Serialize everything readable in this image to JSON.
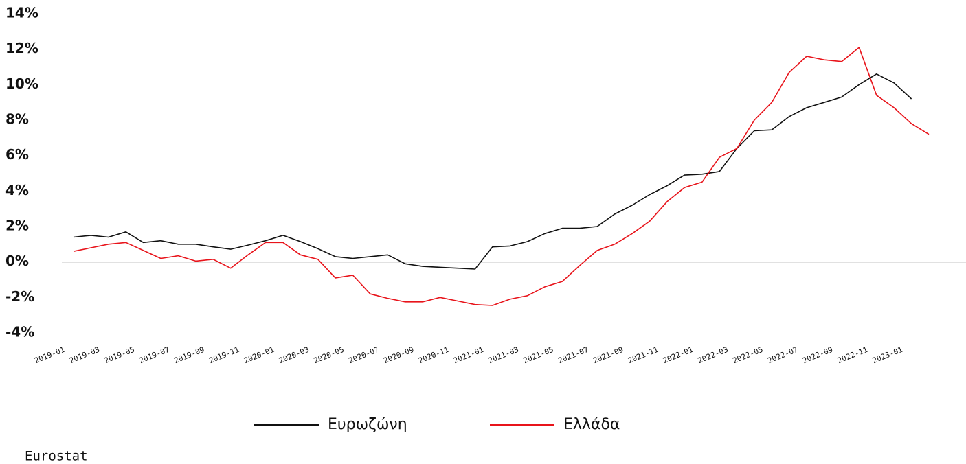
{
  "chart_data": {
    "type": "line",
    "source": "Eurostat",
    "categories": [
      "2019-01",
      null,
      "2019-03",
      null,
      "2019-05",
      null,
      "2019-07",
      null,
      "2019-09",
      null,
      "2019-11",
      null,
      "2020-01",
      null,
      "2020-03",
      null,
      "2020-05",
      null,
      "2020-07",
      null,
      "2020-09",
      null,
      "2020-11",
      null,
      "2021-01",
      null,
      "2021-03",
      null,
      "2021-05",
      null,
      "2021-07",
      null,
      "2021-09",
      null,
      "2021-11",
      null,
      "2022-01",
      null,
      "2022-03",
      null,
      "2022-05",
      null,
      "2022-07",
      null,
      "2022-09",
      null,
      "2022-11",
      null,
      "2023-01",
      null
    ],
    "series": [
      {
        "name": "Ευρωζώνη",
        "color": "#111111",
        "values": [
          1.4,
          1.5,
          1.4,
          1.7,
          1.1,
          1.2,
          1.0,
          1.0,
          0.85,
          0.72,
          0.95,
          1.2,
          1.5,
          1.15,
          0.75,
          0.3,
          0.2,
          0.3,
          0.4,
          -0.1,
          -0.25,
          -0.3,
          -0.35,
          -0.4,
          0.85,
          0.9,
          1.15,
          1.6,
          1.9,
          1.9,
          2.0,
          2.7,
          3.2,
          3.8,
          4.3,
          4.9,
          4.95,
          5.1,
          6.4,
          7.4,
          7.45,
          8.2,
          8.7,
          9.0,
          9.3,
          10.0,
          10.6,
          10.1,
          9.2,
          null
        ]
      },
      {
        "name": "Ελλάδα",
        "color": "#e8141b",
        "values": [
          0.6,
          0.8,
          1.0,
          1.1,
          0.65,
          0.2,
          0.35,
          0.05,
          0.15,
          -0.35,
          0.4,
          1.1,
          1.1,
          0.4,
          0.15,
          -0.9,
          -0.75,
          -1.8,
          -2.05,
          -2.25,
          -2.25,
          -2.0,
          -2.2,
          -2.4,
          -2.45,
          -2.1,
          -1.9,
          -1.4,
          -1.1,
          -0.2,
          0.65,
          1.0,
          1.6,
          2.3,
          3.4,
          4.2,
          4.5,
          5.9,
          6.4,
          8.0,
          9.0,
          10.7,
          11.6,
          11.4,
          11.3,
          12.1,
          9.4,
          8.7,
          7.8,
          7.2
        ]
      }
    ],
    "ylim": [
      -4,
      14
    ],
    "yticks": [
      {
        "value": -4,
        "label": "-4%"
      },
      {
        "value": -2,
        "label": "-2%"
      },
      {
        "value": 0,
        "label": "0%"
      },
      {
        "value": 2,
        "label": "2%"
      },
      {
        "value": 4,
        "label": "4%"
      },
      {
        "value": 6,
        "label": "6%"
      },
      {
        "value": 8,
        "label": "8%"
      },
      {
        "value": 10,
        "label": "10%"
      },
      {
        "value": 12,
        "label": "12%"
      },
      {
        "value": 14,
        "label": "14%"
      }
    ],
    "grid": false,
    "zero_line": true,
    "legend": "bottom"
  }
}
